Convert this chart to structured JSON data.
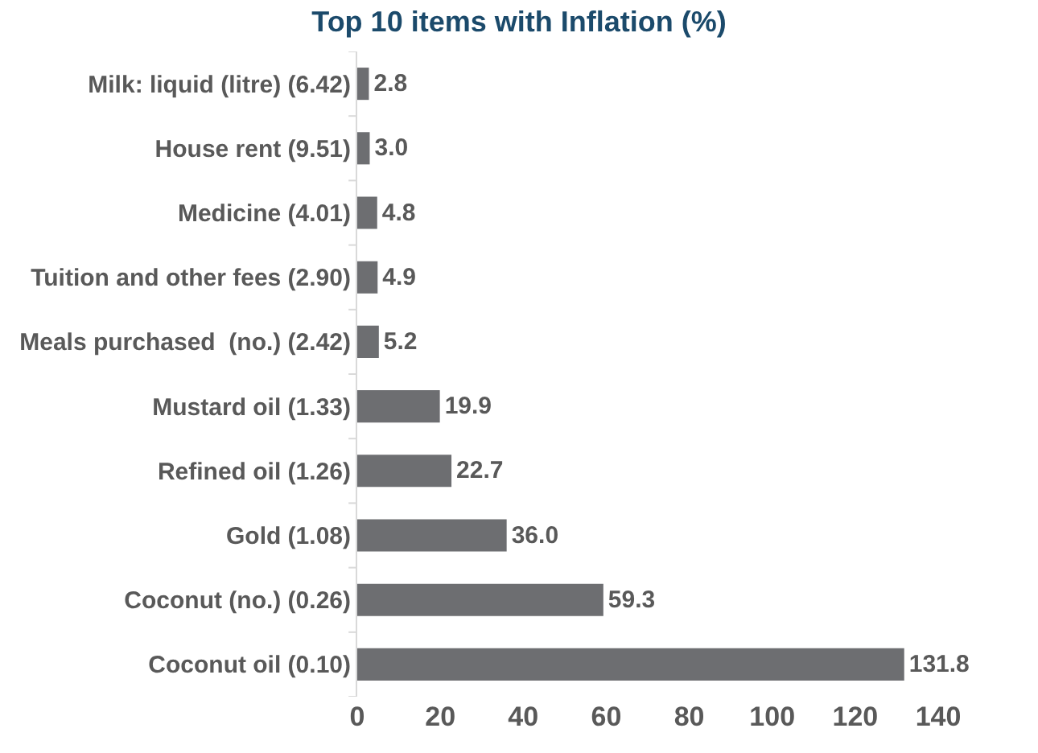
{
  "chart_data": {
    "type": "bar",
    "orientation": "horizontal",
    "title": "Top 10 items with Inflation (%)",
    "categories": [
      "Milk: liquid (litre) (6.42)",
      "House rent (9.51)",
      "Medicine (4.01)",
      "Tuition and other fees (2.90)",
      "Meals purchased  (no.) (2.42)",
      "Mustard oil (1.33)",
      "Refined oil (1.26)",
      "Gold (1.08)",
      "Coconut (no.) (0.26)",
      "Coconut oil (0.10)"
    ],
    "values": [
      2.8,
      3.0,
      4.8,
      4.9,
      5.2,
      19.9,
      22.7,
      36.0,
      59.3,
      131.8
    ],
    "value_labels": [
      "2.8",
      "3.0",
      "4.8",
      "4.9",
      "5.2",
      "19.9",
      "22.7",
      "36.0",
      "59.3",
      "131.8"
    ],
    "color": "#6d6e71",
    "xlim": [
      0,
      140
    ],
    "xticks": [
      0,
      20,
      40,
      60,
      80,
      100,
      120,
      140
    ],
    "grid": false
  }
}
